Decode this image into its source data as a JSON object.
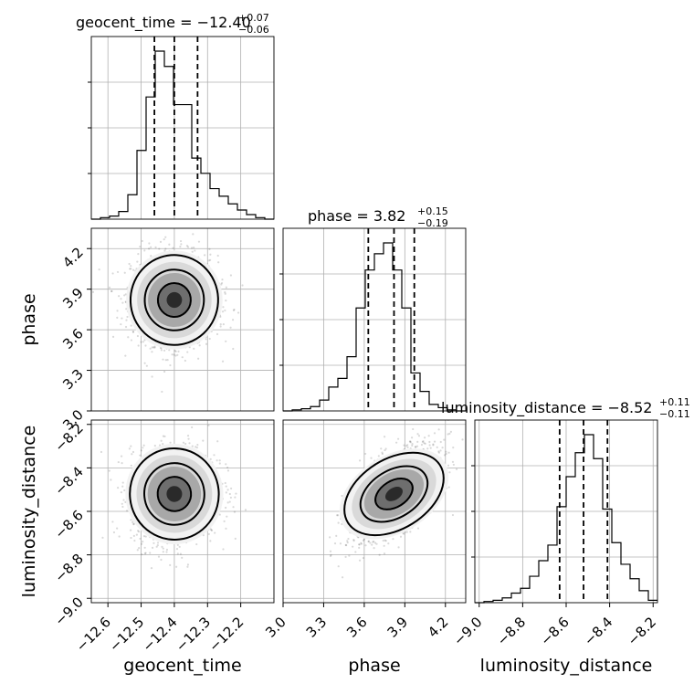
{
  "chart_data": {
    "type": "corner",
    "parameters": [
      "geocent_time",
      "phase",
      "luminosity_distance"
    ],
    "ranges": [
      [
        -12.65,
        -12.1
      ],
      [
        3.0,
        4.35
      ],
      [
        -9.02,
        -8.18
      ]
    ],
    "ticks": [
      [
        "−12.6",
        "−12.5",
        "−12.4",
        "−12.3",
        "−12.2"
      ],
      [
        "3.0",
        "3.3",
        "3.6",
        "3.9",
        "4.2"
      ],
      [
        "−9.0",
        "−8.8",
        "−8.6",
        "−8.4",
        "−8.2"
      ]
    ],
    "tick_values": [
      [
        -12.6,
        -12.5,
        -12.4,
        -12.3,
        -12.2
      ],
      [
        3.0,
        3.3,
        3.6,
        3.9,
        4.2
      ],
      [
        -9.0,
        -8.8,
        -8.6,
        -8.4,
        -8.2
      ]
    ],
    "titles": [
      {
        "label": "geocent_time = −12.40",
        "sup": "+0.07",
        "sub": "−0.06"
      },
      {
        "label": "phase = 3.82",
        "sup": "+0.15",
        "sub": "−0.19"
      },
      {
        "label": "luminosity_distance = −8.52",
        "sup": "+0.11",
        "sub": "−0.11"
      }
    ],
    "medians": [
      -12.4,
      3.82,
      -8.52
    ],
    "quantiles": [
      [
        -12.46,
        -12.4,
        -12.33
      ],
      [
        3.63,
        3.82,
        3.97
      ],
      [
        -8.63,
        -8.52,
        -8.41
      ]
    ],
    "histograms": [
      {
        "edges_start": -12.65,
        "bin_width": 0.0275,
        "counts": [
          0,
          2,
          4,
          10,
          32,
          90,
          160,
          220,
          200,
          150,
          150,
          80,
          60,
          40,
          30,
          20,
          12,
          6,
          2,
          0
        ]
      },
      {
        "edges_start": 3.0,
        "bin_width": 0.0675,
        "counts": [
          0,
          1,
          2,
          4,
          10,
          22,
          30,
          50,
          95,
          130,
          145,
          155,
          130,
          95,
          35,
          18,
          6,
          3,
          1,
          0
        ]
      },
      {
        "edges_start": -9.02,
        "bin_width": 0.042,
        "counts": [
          0,
          1,
          2,
          4,
          8,
          12,
          22,
          35,
          48,
          80,
          105,
          125,
          140,
          120,
          78,
          50,
          32,
          20,
          10,
          2
        ]
      }
    ],
    "correlations": {
      "1_0": -0.05,
      "2_0": 0.1,
      "2_1": 0.6
    },
    "grid": true
  }
}
